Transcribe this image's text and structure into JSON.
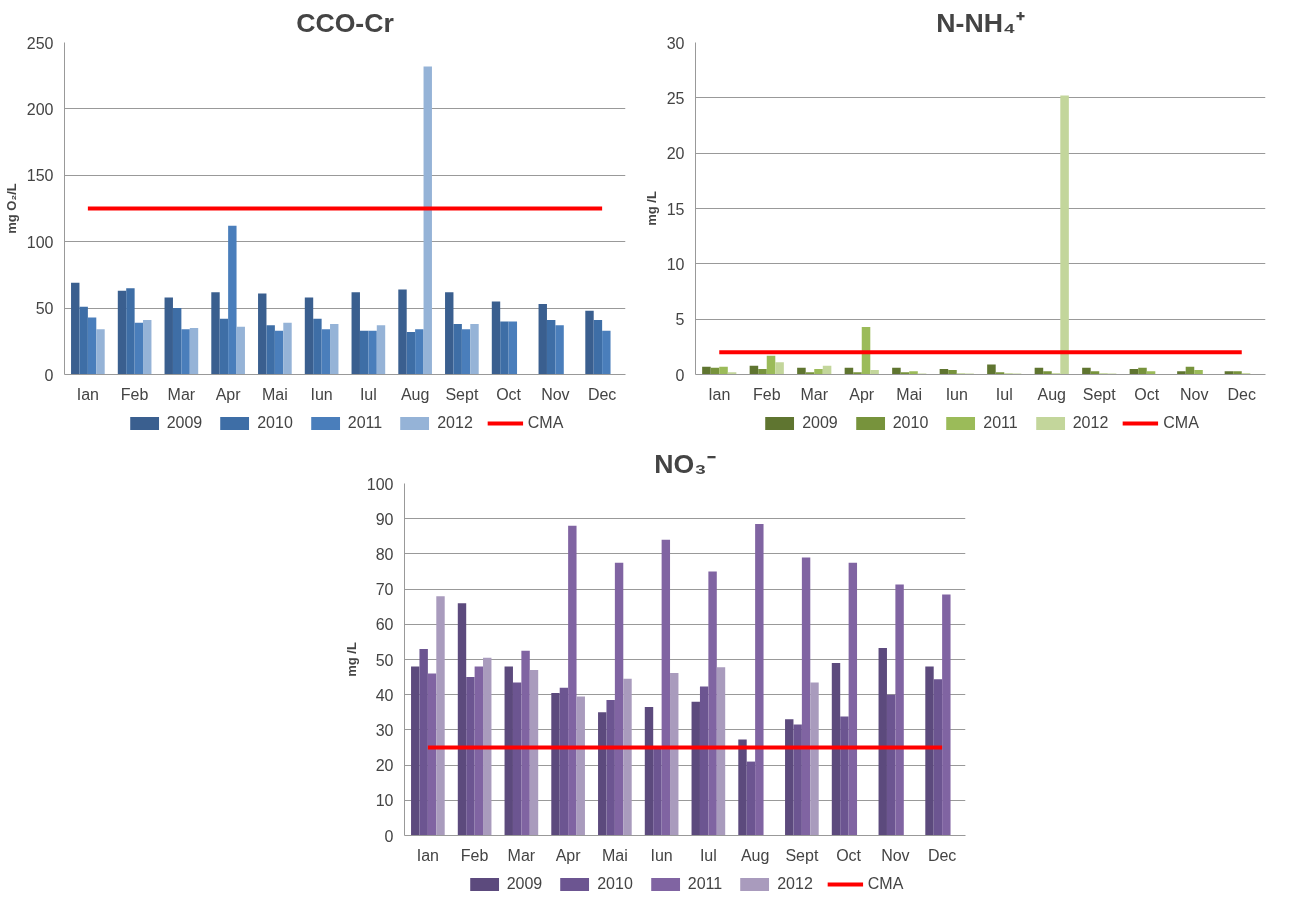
{
  "chart_data": [
    {
      "type": "bar",
      "title": "CCO-Cr",
      "ylabel": "mg O₂/L",
      "categories": [
        "Ian",
        "Feb",
        "Mar",
        "Apr",
        "Mai",
        "Iun",
        "Iul",
        "Aug",
        "Sept",
        "Oct",
        "Nov",
        "Dec"
      ],
      "ylim": [
        0,
        250
      ],
      "yticks": [
        0,
        50,
        100,
        150,
        200,
        250
      ],
      "grid": "y",
      "legend": "bottom",
      "series": [
        {
          "name": "2009",
          "color": "#3a5f8f",
          "values": [
            69,
            63,
            58,
            62,
            61,
            58,
            62,
            64,
            62,
            55,
            53,
            48
          ]
        },
        {
          "name": "2010",
          "color": "#3e6ea6",
          "values": [
            51,
            65,
            50,
            42,
            37,
            42,
            33,
            32,
            38,
            40,
            41,
            41
          ]
        },
        {
          "name": "2011",
          "color": "#4a7ebb",
          "values": [
            43,
            39,
            34,
            112,
            33,
            34,
            33,
            34,
            34,
            40,
            37,
            33
          ]
        },
        {
          "name": "2012",
          "color": "#95b3d7",
          "values": [
            34,
            41,
            35,
            36,
            39,
            38,
            37,
            232,
            38,
            null,
            null,
            null
          ]
        },
        {
          "name": "CMA",
          "type": "line",
          "color": "#ff0000",
          "values": [
            125,
            125,
            125,
            125,
            125,
            125,
            125,
            125,
            125,
            125,
            125,
            125
          ]
        }
      ]
    },
    {
      "type": "bar",
      "title": "N-NH₄⁺",
      "ylabel": "mg /L",
      "categories": [
        "Ian",
        "Feb",
        "Mar",
        "Apr",
        "Mai",
        "Iun",
        "Iul",
        "Aug",
        "Sept",
        "Oct",
        "Nov",
        "Dec"
      ],
      "ylim": [
        0,
        30
      ],
      "yticks": [
        0,
        5,
        10,
        15,
        20,
        25,
        30
      ],
      "grid": "y",
      "legend": "bottom",
      "series": [
        {
          "name": "2009",
          "color": "#5f7530",
          "values": [
            0.7,
            0.8,
            0.6,
            0.6,
            0.6,
            0.5,
            0.9,
            0.6,
            0.6,
            0.5,
            0.3,
            0.3
          ]
        },
        {
          "name": "2010",
          "color": "#77933c",
          "values": [
            0.6,
            0.5,
            0.2,
            0.2,
            0.2,
            0.4,
            0.2,
            0.3,
            0.3,
            0.6,
            0.7,
            0.3
          ]
        },
        {
          "name": "2011",
          "color": "#9bbb59",
          "values": [
            0.7,
            1.7,
            0.5,
            4.3,
            0.3,
            0.1,
            0.1,
            0.1,
            0.1,
            0.3,
            0.4,
            0.1
          ]
        },
        {
          "name": "2012",
          "color": "#c3d69b",
          "values": [
            0.2,
            1.1,
            0.8,
            0.4,
            0.1,
            0.1,
            0.1,
            25.2,
            0.1,
            null,
            null,
            null
          ]
        },
        {
          "name": "CMA",
          "type": "line",
          "color": "#ff0000",
          "values": [
            2,
            2,
            2,
            2,
            2,
            2,
            2,
            2,
            2,
            2,
            2,
            2
          ]
        }
      ]
    },
    {
      "type": "bar",
      "title": "NO₃⁻",
      "ylabel": "mg /L",
      "categories": [
        "Ian",
        "Feb",
        "Mar",
        "Apr",
        "Mai",
        "Iun",
        "Iul",
        "Aug",
        "Sept",
        "Oct",
        "Nov",
        "Dec"
      ],
      "ylim": [
        0,
        100
      ],
      "yticks": [
        0,
        10,
        20,
        30,
        40,
        50,
        60,
        70,
        80,
        90,
        100
      ],
      "grid": "y",
      "legend": "bottom",
      "series": [
        {
          "name": "2009",
          "color": "#5c4a7d",
          "values": [
            48,
            66,
            48,
            40.5,
            35,
            36.5,
            38,
            27.3,
            33,
            49,
            53.3,
            48
          ]
        },
        {
          "name": "2010",
          "color": "#6c5591",
          "values": [
            53,
            45,
            43.5,
            42,
            38.5,
            25,
            42.3,
            21,
            31.5,
            33.8,
            40,
            44.4
          ]
        },
        {
          "name": "2011",
          "color": "#8064a2",
          "values": [
            46,
            48,
            52.5,
            88,
            77.5,
            84,
            75,
            88.5,
            79,
            77.5,
            71.3,
            68.5
          ]
        },
        {
          "name": "2012",
          "color": "#a99bbd",
          "values": [
            68,
            50.5,
            47,
            39.5,
            44.5,
            46.2,
            47.8,
            null,
            43.5,
            null,
            null,
            null
          ]
        },
        {
          "name": "CMA",
          "type": "line",
          "color": "#ff0000",
          "values": [
            25,
            25,
            25,
            25,
            25,
            25,
            25,
            25,
            25,
            25,
            25,
            25
          ]
        }
      ]
    }
  ]
}
